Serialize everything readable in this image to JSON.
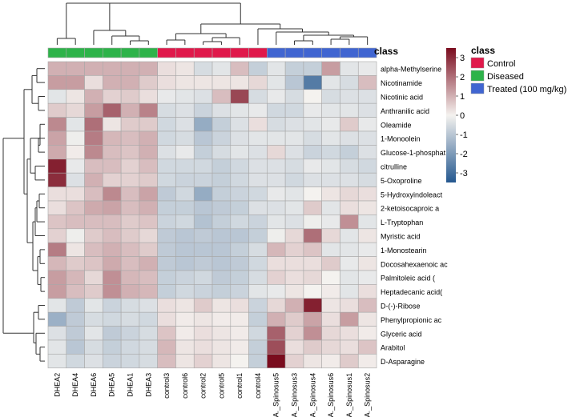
{
  "chart_data": {
    "type": "heatmap",
    "columns": [
      "DHEA2",
      "DHEA4",
      "DHEA6",
      "DHEA5",
      "DHEA1",
      "DHEA3",
      "control3",
      "control6",
      "control2",
      "control5",
      "control1",
      "control4",
      "A._Spinosus5",
      "A._Spinosus3",
      "A._Spinosus4",
      "A._Spinosus6",
      "A._Spinosus1",
      "A._Spinosus2"
    ],
    "column_class": [
      "Diseased",
      "Diseased",
      "Diseased",
      "Diseased",
      "Diseased",
      "Diseased",
      "Control",
      "Control",
      "Control",
      "Control",
      "Control",
      "Control",
      "Treated (100 mg/kg)",
      "Treated (100 mg/kg)",
      "Treated (100 mg/kg)",
      "Treated (100 mg/kg)",
      "Treated (100 mg/kg)",
      "Treated (100 mg/kg)"
    ],
    "rows": [
      "alpha-Methylserine",
      "Nicotinamide",
      "Nicotinic acid",
      "Anthranilic acid",
      "Oleamide",
      "1-Monoolein",
      "Glucose-1-phosphat",
      "citrulline",
      "5-Oxoproline",
      "5-Hydroxyindoleact",
      "2-ketoisocaproic a",
      "L-Tryptophan",
      "Myristic acid",
      "1-Monostearin",
      "Docosahexaenoic ac",
      "Palmitoleic acid (",
      "Heptadecanic acid(",
      "D-(-)-Ribose",
      "Phenylpropionic ac",
      "Glyceric acid",
      "Arabitol",
      "D-Asparagine"
    ],
    "values": [
      [
        1.0,
        1.0,
        1.0,
        1.0,
        1.0,
        1.0,
        0.3,
        0.2,
        -0.5,
        -0.3,
        0.8,
        -0.8,
        -0.3,
        -0.8,
        -0.8,
        1.3,
        -0.3,
        -0.2
      ],
      [
        1.3,
        1.3,
        0.3,
        1.0,
        1.0,
        0.6,
        0.3,
        0.2,
        0.2,
        0.2,
        0.2,
        0.4,
        -0.3,
        -1.0,
        -2.7,
        -0.3,
        -0.5,
        0.8
      ],
      [
        -0.3,
        0.2,
        1.0,
        0.5,
        0.6,
        0.3,
        -0.2,
        -0.3,
        -0.4,
        0.8,
        2.6,
        -0.5,
        -0.2,
        -0.5,
        0.0,
        -0.5,
        -0.4,
        -0.4
      ],
      [
        0.6,
        0.4,
        1.3,
        2.2,
        1.0,
        1.7,
        -0.5,
        -0.4,
        -0.7,
        -0.4,
        -0.3,
        -0.2,
        -0.6,
        -0.6,
        -0.2,
        -0.3,
        -0.3,
        -0.4
      ],
      [
        1.6,
        -0.3,
        2.0,
        0.2,
        0.6,
        0.6,
        -0.6,
        -0.4,
        -1.6,
        -0.8,
        -0.4,
        0.3,
        -0.5,
        -0.4,
        -0.3,
        -0.2,
        0.6,
        -0.2
      ],
      [
        1.2,
        -0.1,
        1.8,
        0.9,
        0.8,
        1.0,
        -0.6,
        -0.5,
        -1.0,
        -0.7,
        -0.4,
        -0.3,
        -0.3,
        -0.3,
        -0.5,
        -0.3,
        -0.4,
        -0.4
      ],
      [
        1.1,
        0.1,
        1.6,
        0.8,
        0.7,
        1.0,
        -0.4,
        -0.2,
        -0.8,
        -0.5,
        -0.3,
        -0.4,
        0.4,
        -0.4,
        -0.7,
        -0.6,
        -0.8,
        -0.4
      ],
      [
        3.2,
        -0.2,
        0.8,
        0.8,
        0.5,
        0.8,
        -0.6,
        -0.6,
        -0.6,
        -0.8,
        -0.6,
        -0.4,
        -0.4,
        -0.5,
        -0.2,
        -0.3,
        -0.5,
        -0.6
      ],
      [
        3.0,
        -0.4,
        1.0,
        0.5,
        0.5,
        0.6,
        -0.6,
        -0.7,
        -0.7,
        -0.8,
        -0.6,
        -0.4,
        -0.4,
        -0.6,
        -0.4,
        -0.4,
        -0.4,
        -0.5
      ],
      [
        0.3,
        0.3,
        0.8,
        1.6,
        0.8,
        1.2,
        -0.9,
        -0.6,
        -1.6,
        -0.8,
        -0.7,
        -0.6,
        -0.2,
        -0.3,
        0.0,
        0.2,
        0.4,
        0.3
      ],
      [
        0.3,
        0.7,
        1.1,
        1.2,
        0.8,
        1.0,
        -0.8,
        -0.8,
        -1.0,
        -0.9,
        -0.8,
        -0.4,
        -0.4,
        -0.3,
        0.6,
        -0.3,
        0.3,
        0.2
      ],
      [
        0.7,
        0.8,
        0.8,
        0.8,
        0.6,
        0.7,
        -0.7,
        -0.6,
        -1.1,
        -0.8,
        -0.6,
        -0.7,
        -0.3,
        -0.4,
        -0.1,
        -0.2,
        1.5,
        -0.3
      ],
      [
        0.5,
        -0.1,
        0.6,
        0.8,
        0.6,
        0.4,
        -0.9,
        -1.0,
        -0.9,
        -1.0,
        -1.0,
        -0.8,
        -0.1,
        0.4,
        2.0,
        0.4,
        -0.3,
        0.2
      ],
      [
        1.8,
        0.2,
        0.8,
        1.0,
        0.8,
        0.6,
        -0.9,
        -1.0,
        -1.0,
        -1.0,
        -0.8,
        -0.5,
        0.9,
        0.5,
        0.7,
        -0.3,
        -0.3,
        -0.2
      ],
      [
        0.9,
        0.6,
        0.7,
        1.1,
        0.8,
        1.0,
        -0.9,
        -1.0,
        -0.9,
        -1.0,
        -0.9,
        -0.6,
        0.3,
        0.3,
        0.3,
        0.6,
        -0.2,
        0.2
      ],
      [
        1.3,
        0.9,
        0.4,
        1.5,
        0.9,
        0.8,
        -0.8,
        -0.7,
        -0.6,
        -0.9,
        -0.8,
        -0.5,
        0.5,
        0.3,
        0.4,
        0.0,
        -0.3,
        -0.2
      ],
      [
        1.3,
        0.8,
        0.6,
        1.5,
        1.0,
        0.9,
        -0.8,
        -0.6,
        -0.7,
        -0.8,
        -0.7,
        -0.3,
        -0.2,
        0.2,
        0.0,
        0.1,
        -0.3,
        0.3
      ],
      [
        -0.3,
        -0.9,
        -0.3,
        -0.7,
        -0.5,
        -0.4,
        0.3,
        0.2,
        0.6,
        0.2,
        0.3,
        -0.7,
        0.4,
        1.0,
        3.2,
        0.2,
        0.3,
        0.8
      ],
      [
        -1.5,
        -0.9,
        -0.5,
        -0.6,
        -0.5,
        -0.6,
        0.3,
        0.1,
        0.2,
        0.1,
        0.1,
        -0.8,
        1.0,
        0.6,
        1.2,
        0.3,
        1.3,
        0.2
      ],
      [
        -0.4,
        -0.9,
        -0.3,
        -0.9,
        -0.7,
        -0.5,
        0.7,
        0.1,
        0.3,
        0.2,
        0.1,
        -0.6,
        2.2,
        0.5,
        1.5,
        0.4,
        0.3,
        0.1
      ],
      [
        -0.3,
        -1.0,
        -0.5,
        -0.8,
        -0.6,
        -0.5,
        0.9,
        0.2,
        0.3,
        0.2,
        0.1,
        -0.8,
        2.5,
        0.3,
        0.6,
        0.4,
        0.3,
        0.7
      ],
      [
        -0.3,
        -0.6,
        -0.4,
        -0.7,
        -0.6,
        -0.5,
        0.8,
        0.2,
        0.5,
        0.2,
        0.0,
        -0.8,
        3.5,
        0.5,
        0.2,
        0.1,
        0.6,
        0.1
      ]
    ],
    "range": [
      -3.5,
      3.5
    ],
    "colorbar_ticks": [
      3,
      2,
      1,
      0,
      -1,
      -2,
      -3
    ],
    "annotation_title": "class",
    "legend": {
      "title": "class",
      "entries": [
        {
          "label": "Control",
          "color": "#e0194b"
        },
        {
          "label": "Diseased",
          "color": "#2eb34a"
        },
        {
          "label": "Treated (100 mg/kg)",
          "color": "#4065d1"
        }
      ]
    },
    "color_scale": {
      "low": "#24588f",
      "mid": "#f4f2ef",
      "high": "#7a0c1e"
    },
    "grid": true
  }
}
